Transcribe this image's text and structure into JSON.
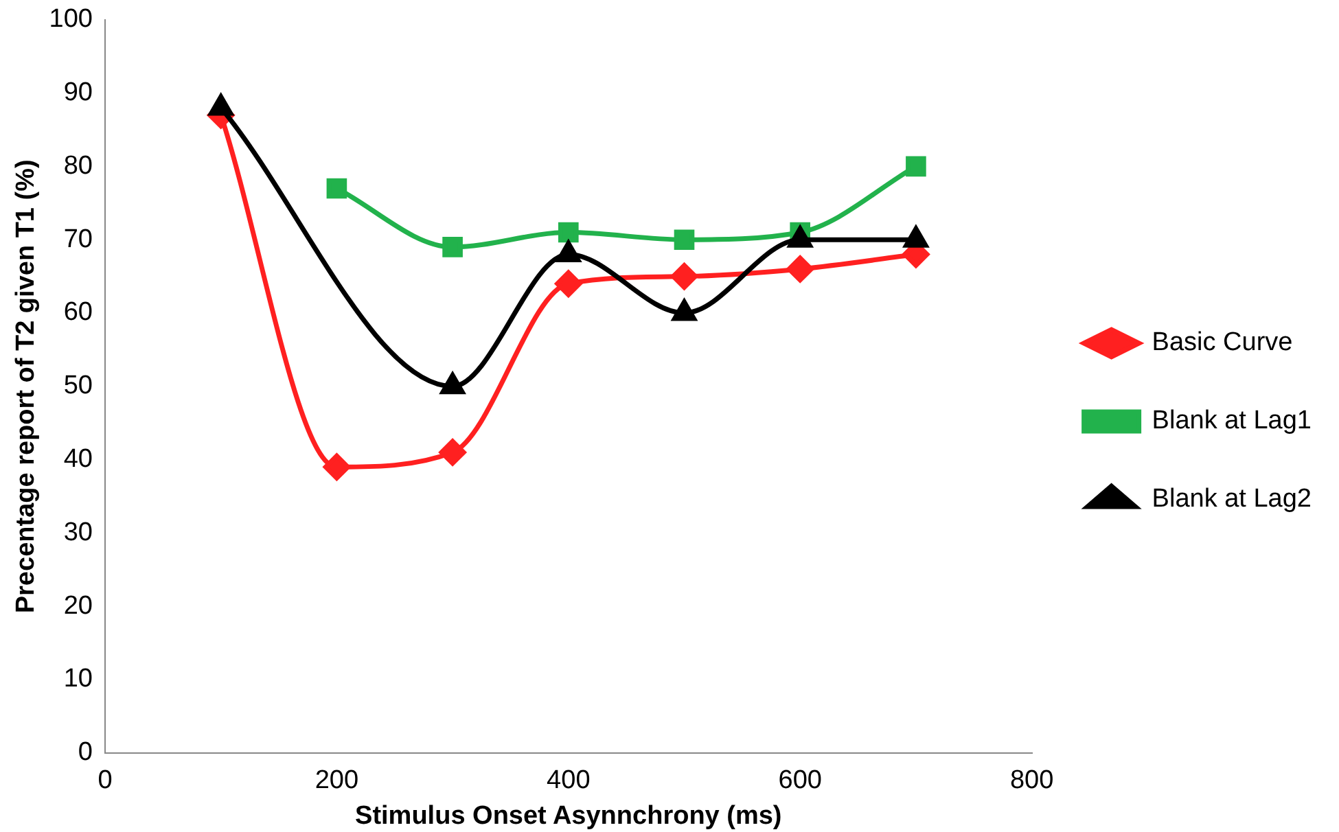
{
  "chart_data": {
    "type": "line",
    "xlabel": "Stimulus Onset Asynnchrony (ms)",
    "ylabel": "Precentage report of T2 given T1 (%)",
    "xlim": [
      0,
      800
    ],
    "xticks": [
      0,
      200,
      400,
      600,
      800
    ],
    "ylim": [
      0,
      100
    ],
    "yticks": [
      0,
      10,
      20,
      30,
      40,
      50,
      60,
      70,
      80,
      90,
      100
    ],
    "grid": false,
    "legend": "right",
    "line_style": "solid",
    "series": [
      {
        "name": "Basic Curve",
        "color": "#ff2020",
        "marker": "diamond",
        "x": [
          100,
          200,
          300,
          400,
          500,
          600,
          700
        ],
        "values": [
          87,
          39,
          41,
          64,
          65,
          66,
          68
        ]
      },
      {
        "name": "Blank at Lag1",
        "color": "#22b24c",
        "marker": "square",
        "x": [
          200,
          300,
          400,
          500,
          600,
          700
        ],
        "values": [
          77,
          69,
          71,
          70,
          71,
          80
        ]
      },
      {
        "name": "Blank at Lag2",
        "color": "#000000",
        "marker": "triangle",
        "x": [
          100,
          300,
          400,
          500,
          600,
          700
        ],
        "values": [
          88,
          50,
          68,
          60,
          70,
          70
        ]
      }
    ]
  }
}
